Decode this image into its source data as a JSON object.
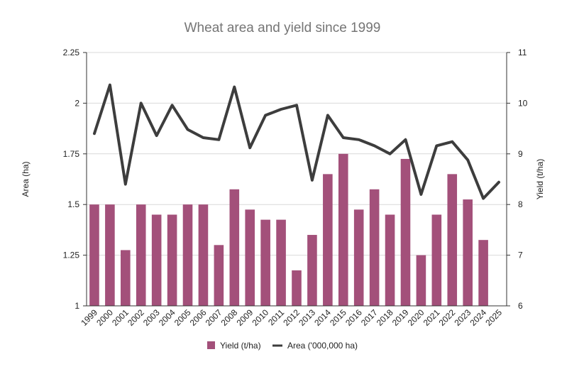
{
  "chart_data": {
    "type": "bar+line",
    "title": "Wheat area and yield since 1999",
    "categories": [
      "1999",
      "2000",
      "2001",
      "2002",
      "2003",
      "2004",
      "2005",
      "2006",
      "2007",
      "2008",
      "2009",
      "2010",
      "2011",
      "2012",
      "2013",
      "2014",
      "2015",
      "2016",
      "2017",
      "2018",
      "2019",
      "2020",
      "2021",
      "2022",
      "2023",
      "2024",
      "2025"
    ],
    "series": [
      {
        "name": "Yield (t/ha)",
        "type": "bar",
        "axis": "right",
        "color": "#a3507a",
        "values": [
          8.0,
          8.0,
          7.1,
          8.0,
          7.8,
          7.8,
          8.0,
          8.0,
          7.2,
          8.3,
          7.9,
          7.7,
          7.7,
          6.7,
          7.4,
          8.6,
          9.0,
          7.9,
          8.3,
          7.8,
          8.9,
          7.0,
          7.8,
          8.6,
          8.1,
          7.3,
          null
        ]
      },
      {
        "name": "Area ('000,000 ha)",
        "type": "line",
        "axis": "left",
        "color": "#3d3d3d",
        "values": [
          1.85,
          2.09,
          1.6,
          2.0,
          1.84,
          1.99,
          1.87,
          1.83,
          1.82,
          2.08,
          1.78,
          1.94,
          1.97,
          1.99,
          1.62,
          1.94,
          1.83,
          1.82,
          1.79,
          1.75,
          1.82,
          1.55,
          1.79,
          1.81,
          1.72,
          1.53,
          1.61
        ]
      }
    ],
    "left_axis": {
      "label": "Area (ha)",
      "min": 1,
      "max": 2.25,
      "ticks": [
        "1",
        "1.25",
        "1.5",
        "1.75",
        "2",
        "2.25"
      ]
    },
    "right_axis": {
      "label": "Yield (t/ha)",
      "min": 6,
      "max": 11,
      "ticks": [
        "6",
        "7",
        "8",
        "9",
        "10",
        "11"
      ]
    },
    "grid": true,
    "legend": "bottom"
  }
}
